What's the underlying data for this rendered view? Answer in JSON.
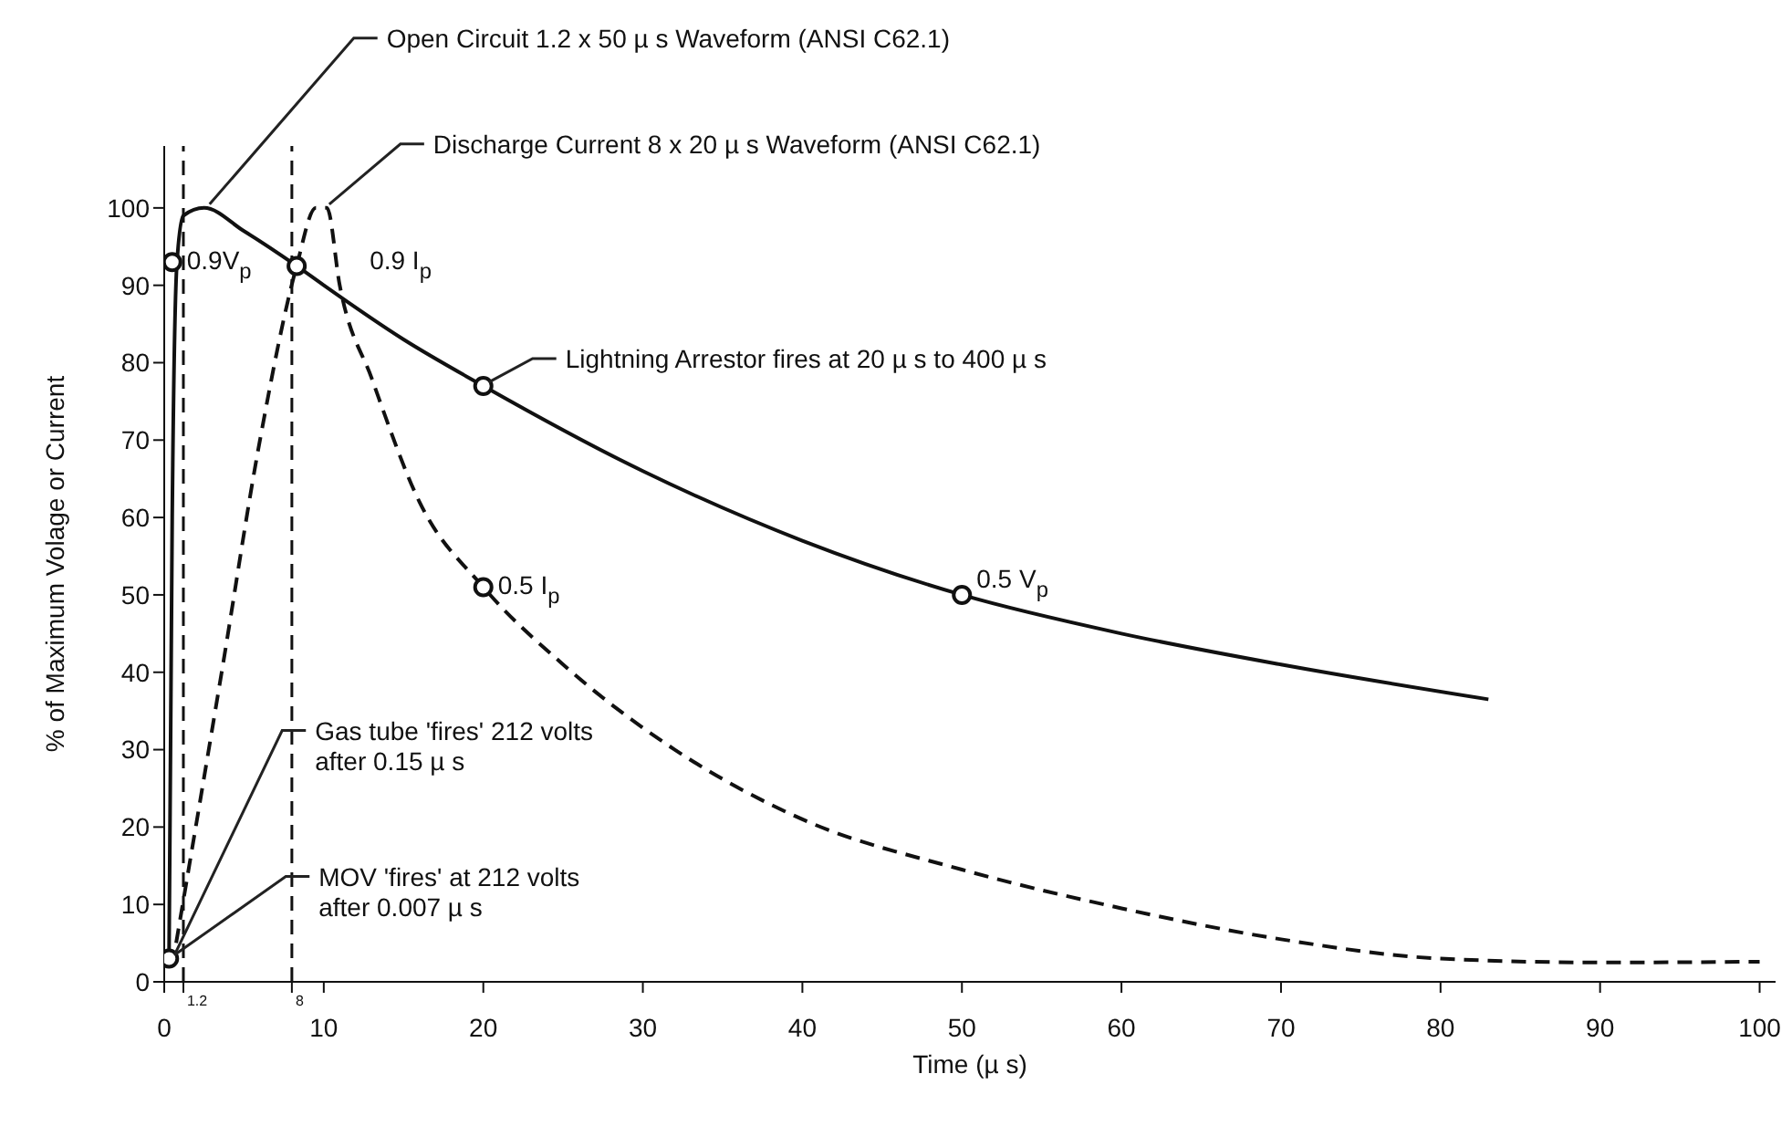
{
  "chart_data": {
    "type": "line",
    "xlabel": "Time (µ s)",
    "ylabel": "% of Maximum Volage or Current",
    "xlim": [
      0,
      101
    ],
    "ylim": [
      0,
      108
    ],
    "xticks": [
      0,
      {
        "value": 1.2,
        "label": null
      },
      {
        "value": 8,
        "label": null
      },
      10,
      20,
      30,
      40,
      50,
      60,
      70,
      80,
      90,
      100
    ],
    "yticks": [
      0,
      10,
      20,
      30,
      40,
      50,
      60,
      70,
      80,
      90,
      100
    ],
    "marker": "none",
    "series": [
      {
        "line_style": "solid",
        "color": "#111111",
        "x": [
          0.3,
          0.5,
          0.8,
          1.2,
          2.5,
          5,
          8.3,
          10,
          15,
          20,
          30,
          40,
          50,
          60,
          70,
          83
        ],
        "values": [
          3,
          60,
          93,
          99,
          100,
          97,
          92.5,
          90,
          83,
          77,
          66,
          57,
          50,
          45,
          41,
          36.5
        ]
      },
      {
        "line_style": "dashed",
        "color": "#111111",
        "x": [
          0.5,
          3.6,
          6,
          8.3,
          9.5,
          10.2,
          11,
          13,
          16,
          20,
          25,
          32,
          40,
          50,
          60,
          70,
          80,
          90,
          100
        ],
        "values": [
          2,
          40,
          70,
          92.5,
          100,
          100,
          90,
          78,
          62,
          51,
          41,
          30,
          21,
          14.5,
          9.5,
          5.5,
          3,
          2.5,
          2.6
        ]
      },
      {
        "type": "scatter",
        "marker": "circle",
        "color": "#111111",
        "x": [
          0.3,
          0.5,
          8.3,
          20,
          20,
          50
        ],
        "values": [
          3,
          93,
          92.5,
          77,
          51,
          50
        ]
      }
    ],
    "ref_lines": [
      {
        "axis": "x",
        "value": 1.2,
        "label": "1.2",
        "line_style": "dashed",
        "color": "#111111"
      },
      {
        "axis": "x",
        "value": 8,
        "label": "8",
        "line_style": "dashed",
        "color": "#111111"
      }
    ],
    "annotations": [
      {
        "text": "Open Circuit 1.2 x 50 µ s Waveform (ANSI C62.1)",
        "x": 2.5,
        "y": 100
      },
      {
        "text": "Discharge Current 8 x 20 µ s Waveform (ANSI C62.1)",
        "x": 10,
        "y": 100
      },
      {
        "text": "0.9V$_{p}$",
        "x": 0.5,
        "y": 93
      },
      {
        "text": "0.9 I$_{p}$",
        "x": 8.3,
        "y": 92.5
      },
      {
        "text": "Lightning Arrestor fires at 20 µ s to 400 µ s",
        "x": 20,
        "y": 77
      },
      {
        "text": "0.5 I$_{p}$",
        "x": 20,
        "y": 51
      },
      {
        "text": "0.5 V$_{p}$",
        "x": 50,
        "y": 50
      },
      {
        "text": "Gas tube 'fires' 212 volts\nafter 0.15 µ s",
        "x": 0.3,
        "y": 3
      },
      {
        "text": "MOV 'fires' at 212 volts\nafter 0.007 µ s",
        "x": 0.3,
        "y": 3
      }
    ]
  }
}
